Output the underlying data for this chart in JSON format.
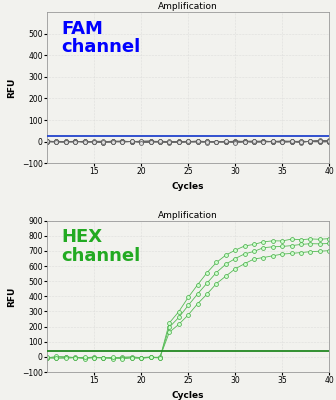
{
  "title": "Amplification",
  "xlabel": "Cycles",
  "ylabel": "RFU",
  "fam_ylim": [
    -100,
    600
  ],
  "fam_yticks": [
    -100,
    0,
    100,
    200,
    300,
    400,
    500
  ],
  "fam_label": "FAM\nchannel",
  "fam_label_color": "#0000FF",
  "fam_threshold": 28,
  "fam_threshold_color": "#2244CC",
  "fam_line_color": "#666666",
  "fam_marker_facecolor": "#DDDDDD",
  "fam_marker_edgecolor": "#555555",
  "hex_ylim": [
    -100,
    900
  ],
  "hex_yticks": [
    -100,
    0,
    100,
    200,
    300,
    400,
    500,
    600,
    700,
    800,
    900
  ],
  "hex_label": "HEX\nchannel",
  "hex_label_color": "#22AA22",
  "hex_threshold": 40,
  "hex_threshold_color": "#228822",
  "hex_line_color": "#55BB55",
  "hex_marker_facecolor": "#CCFFCC",
  "hex_marker_edgecolor": "#44AA44",
  "xlim": [
    10,
    40
  ],
  "xticks": [
    15,
    20,
    25,
    30,
    35,
    40
  ],
  "background_color": "#F2F2EE",
  "grid_color": "#CCCCCC"
}
